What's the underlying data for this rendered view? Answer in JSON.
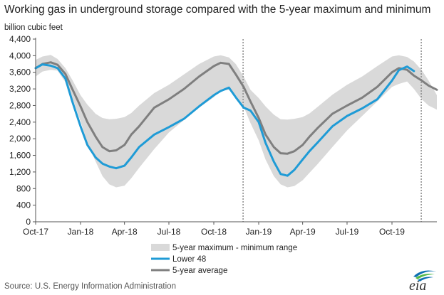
{
  "chart_title": "Working gas in underground storage compared with the 5-year maximum and minimum",
  "source": "Source:  U.S. Energy Information Administration",
  "logo_text": "eia",
  "colors": {
    "range": "#d9d9d9",
    "lower48": "#1f9bd6",
    "avg": "#7f7f7f",
    "divider": "#8c8c8c",
    "axis": "#555555",
    "logo_blue": "#0f71b3",
    "logo_green": "#54b948"
  },
  "chart_data": {
    "type": "line",
    "title": "Working gas in underground storage compared with the 5-year maximum and minimum",
    "ylabel": "billion cubic feet",
    "xlabel": "",
    "ylim": [
      0,
      4400
    ],
    "xlim": [
      "2017-10-01",
      "2020-01-01"
    ],
    "yticks": [
      "0",
      "400",
      "800",
      "1,200",
      "1,600",
      "2,000",
      "2,400",
      "2,800",
      "3,200",
      "3,600",
      "4,000",
      "4,400"
    ],
    "xticks": [
      {
        "date": "2017-10-01",
        "label": "Oct-17"
      },
      {
        "date": "2018-01-01",
        "label": "Jan-18"
      },
      {
        "date": "2018-04-01",
        "label": "Apr-18"
      },
      {
        "date": "2018-07-01",
        "label": "Jul-18"
      },
      {
        "date": "2018-10-01",
        "label": "Oct-18"
      },
      {
        "date": "2019-01-01",
        "label": "Jan-19"
      },
      {
        "date": "2019-04-01",
        "label": "Apr-19"
      },
      {
        "date": "2019-07-01",
        "label": "Jul-19"
      },
      {
        "date": "2019-10-01",
        "label": "Oct-19"
      }
    ],
    "grid": false,
    "legend_position": "bottom-center",
    "dividers": [
      "2018-11-30",
      "2019-11-30"
    ],
    "range": {
      "name": "5-year maximum - minimum range",
      "dates": [
        "2017-10-01",
        "2017-10-15",
        "2017-11-01",
        "2017-11-15",
        "2017-12-01",
        "2017-12-15",
        "2018-01-01",
        "2018-01-15",
        "2018-02-01",
        "2018-02-15",
        "2018-03-01",
        "2018-03-15",
        "2018-04-01",
        "2018-04-15",
        "2018-05-01",
        "2018-06-01",
        "2018-07-01",
        "2018-08-01",
        "2018-09-01",
        "2018-10-01",
        "2018-10-15",
        "2018-11-01",
        "2018-11-15",
        "2018-12-01",
        "2018-12-15",
        "2019-01-01",
        "2019-01-15",
        "2019-02-01",
        "2019-02-15",
        "2019-03-01",
        "2019-03-15",
        "2019-04-01",
        "2019-04-15",
        "2019-05-01",
        "2019-06-01",
        "2019-07-01",
        "2019-08-01",
        "2019-09-01",
        "2019-10-01",
        "2019-10-15",
        "2019-11-01",
        "2019-11-15",
        "2019-12-01",
        "2019-12-15",
        "2020-01-01"
      ],
      "max": [
        3900,
        3980,
        4020,
        3920,
        3700,
        3420,
        3050,
        2820,
        2600,
        2500,
        2470,
        2480,
        2520,
        2620,
        2800,
        3100,
        3300,
        3550,
        3800,
        3980,
        4010,
        3960,
        3800,
        3500,
        3180,
        2980,
        2780,
        2580,
        2470,
        2460,
        2480,
        2520,
        2610,
        2760,
        3060,
        3300,
        3500,
        3750,
        3980,
        4010,
        3970,
        3860,
        3650,
        3400,
        3050
      ],
      "min": [
        3500,
        3620,
        3660,
        3640,
        3360,
        2980,
        2420,
        1900,
        1450,
        1100,
        900,
        830,
        870,
        1050,
        1300,
        1750,
        2150,
        2450,
        2750,
        3000,
        3150,
        3180,
        3050,
        2780,
        2380,
        1960,
        1500,
        1100,
        900,
        830,
        860,
        1000,
        1180,
        1380,
        1800,
        2200,
        2550,
        2900,
        3250,
        3320,
        3380,
        3200,
        2950,
        2800,
        2700
      ]
    },
    "series": [
      {
        "name": "Lower 48",
        "dates": [
          "2017-10-01",
          "2017-10-15",
          "2017-11-01",
          "2017-11-15",
          "2017-12-01",
          "2017-12-15",
          "2018-01-01",
          "2018-01-15",
          "2018-02-01",
          "2018-02-15",
          "2018-03-01",
          "2018-03-15",
          "2018-04-01",
          "2018-04-15",
          "2018-05-01",
          "2018-06-01",
          "2018-07-01",
          "2018-08-01",
          "2018-09-01",
          "2018-10-01",
          "2018-10-15",
          "2018-11-01",
          "2018-11-15",
          "2018-12-01",
          "2018-12-15",
          "2019-01-01",
          "2019-01-15",
          "2019-02-01",
          "2019-02-15",
          "2019-03-01",
          "2019-03-15",
          "2019-04-01",
          "2019-04-15",
          "2019-05-01",
          "2019-06-01",
          "2019-07-01",
          "2019-08-01",
          "2019-09-01",
          "2019-10-01",
          "2019-10-15",
          "2019-11-01",
          "2019-11-15"
        ],
        "values": [
          3700,
          3790,
          3760,
          3700,
          3450,
          2900,
          2300,
          1850,
          1550,
          1400,
          1330,
          1290,
          1350,
          1550,
          1800,
          2100,
          2280,
          2480,
          2780,
          3050,
          3150,
          3230,
          3000,
          2750,
          2680,
          2400,
          1900,
          1450,
          1150,
          1110,
          1250,
          1500,
          1700,
          1900,
          2300,
          2550,
          2730,
          2950,
          3400,
          3650,
          3740,
          3630
        ]
      },
      {
        "name": "5-year average",
        "dates": [
          "2017-10-01",
          "2017-10-15",
          "2017-11-01",
          "2017-11-15",
          "2017-12-01",
          "2017-12-15",
          "2018-01-01",
          "2018-01-15",
          "2018-02-01",
          "2018-02-15",
          "2018-03-01",
          "2018-03-15",
          "2018-04-01",
          "2018-04-15",
          "2018-05-01",
          "2018-06-01",
          "2018-07-01",
          "2018-08-01",
          "2018-09-01",
          "2018-10-01",
          "2018-10-15",
          "2018-11-01",
          "2018-11-15",
          "2018-12-01",
          "2018-12-15",
          "2019-01-01",
          "2019-01-15",
          "2019-02-01",
          "2019-02-15",
          "2019-03-01",
          "2019-03-15",
          "2019-04-01",
          "2019-04-15",
          "2019-05-01",
          "2019-06-01",
          "2019-07-01",
          "2019-08-01",
          "2019-09-01",
          "2019-10-01",
          "2019-10-15",
          "2019-11-01",
          "2019-11-15",
          "2019-12-01",
          "2019-12-15",
          "2020-01-01"
        ],
        "values": [
          3700,
          3800,
          3840,
          3780,
          3560,
          3200,
          2780,
          2400,
          2050,
          1800,
          1700,
          1720,
          1850,
          2100,
          2300,
          2750,
          2950,
          3200,
          3500,
          3750,
          3830,
          3800,
          3550,
          3250,
          2900,
          2500,
          2100,
          1800,
          1650,
          1640,
          1700,
          1850,
          2050,
          2250,
          2600,
          2800,
          2990,
          3250,
          3600,
          3700,
          3660,
          3520,
          3400,
          3280,
          3180
        ]
      }
    ]
  },
  "legend": [
    {
      "key": "range",
      "label": "5-year maximum - minimum range"
    },
    {
      "key": "lower48",
      "label": "Lower 48"
    },
    {
      "key": "avg",
      "label": "5-year average"
    }
  ]
}
